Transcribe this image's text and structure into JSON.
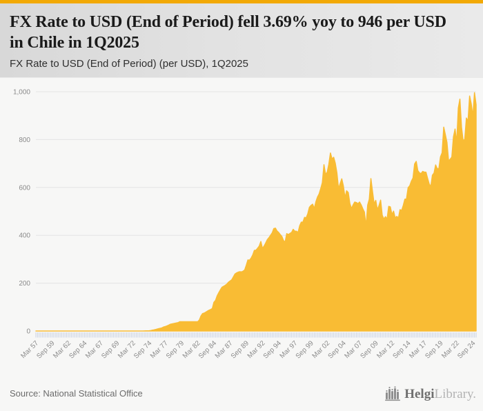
{
  "colors": {
    "accent_bar": "#f2a905",
    "area_fill": "#f9bc34",
    "gridline": "#e4e4e4",
    "axis_tick": "#c9d2e4",
    "axis_label": "#8a8a8a"
  },
  "header": {
    "title": "FX Rate to USD (End of Period) fell 3.69% yoy to 946 per USD in Chile in 1Q2025",
    "subtitle": "FX Rate to USD (End of Period) (per USD), 1Q2025"
  },
  "chart_data": {
    "type": "area",
    "title": "FX Rate to USD (End of Period) (per USD), 1Q2025",
    "country": "Chile",
    "unit": "per USD",
    "latest_value": 946,
    "latest_period": "1Q2025",
    "yoy_change_pct": -3.69,
    "grid": true,
    "legend": "none",
    "ylim": [
      0,
      1000
    ],
    "yticks": [
      0,
      200,
      400,
      600,
      800,
      1000
    ],
    "ytick_labels": [
      "0",
      "200",
      "400",
      "600",
      "800",
      "1,000"
    ],
    "x_axis": {
      "frequency": "quarterly",
      "start": "Mar 1957",
      "end": "Mar 2025",
      "tick_every": 10,
      "tick_labels": [
        "Mar 57",
        "Sep 59",
        "Mar 62",
        "Sep 64",
        "Mar 67",
        "Sep 69",
        "Mar 72",
        "Sep 74",
        "Mar 77",
        "Sep 79",
        "Mar 82",
        "Sep 84",
        "Mar 87",
        "Sep 89",
        "Mar 92",
        "Sep 94",
        "Mar 97",
        "Sep 99",
        "Mar 02",
        "Sep 04",
        "Mar 07",
        "Sep 09",
        "Mar 12",
        "Sep 14",
        "Mar 17",
        "Sep 19",
        "Mar 22",
        "Sep 24"
      ]
    },
    "values": [
      0,
      0,
      0,
      0,
      0,
      0,
      0,
      0,
      0,
      0,
      0,
      0,
      0,
      0,
      0,
      0,
      0,
      0,
      0,
      0,
      0,
      0,
      0,
      0,
      0,
      0,
      0,
      0,
      0,
      0,
      0,
      0,
      0,
      0,
      0,
      0,
      0,
      0,
      0,
      0,
      0,
      0,
      0,
      0,
      0,
      0,
      0,
      0,
      0,
      0,
      0,
      0,
      0,
      0,
      0,
      0,
      0.01,
      0.01,
      0.01,
      0.02,
      0.02,
      0.03,
      0.04,
      0.05,
      0.06,
      0.09,
      0.15,
      0.36,
      0.55,
      0.75,
      1.1,
      1.87,
      3.7,
      4.8,
      6.4,
      8.5,
      10,
      11.5,
      13.5,
      17,
      19,
      21.5,
      24.5,
      28,
      29.5,
      31,
      32.5,
      34,
      35.5,
      39,
      39,
      39,
      39,
      39,
      39,
      39,
      39,
      39,
      39,
      39,
      39,
      46,
      63,
      73,
      75,
      79,
      83,
      87,
      90,
      94,
      120,
      128,
      147,
      160,
      172,
      183,
      187,
      191,
      196,
      204,
      209,
      214,
      226,
      238,
      243,
      246,
      248,
      247,
      250,
      255,
      275,
      297,
      296,
      305,
      318,
      337,
      338,
      346,
      355,
      374,
      345,
      355,
      368,
      382,
      390,
      400,
      410,
      428,
      430,
      418,
      412,
      403,
      395,
      378,
      372,
      407,
      403,
      408,
      412,
      425,
      417,
      417,
      412,
      440,
      455,
      455,
      475,
      473,
      490,
      517,
      525,
      530,
      512,
      540,
      560,
      573,
      595,
      620,
      695,
      654,
      664,
      697,
      744,
      719,
      726,
      701,
      661,
      594,
      616,
      636,
      606,
      557,
      586,
      579,
      533,
      512,
      527,
      539,
      537,
      532,
      539,
      527,
      511,
      497,
      438,
      526,
      551,
      637,
      583,
      531,
      546,
      507,
      524,
      547,
      484,
      468,
      478,
      468,
      521,
      519,
      487,
      501,
      473,
      479,
      472,
      507,
      504,
      525,
      551,
      553,
      599,
      607,
      626,
      639,
      698,
      709,
      670,
      661,
      658,
      667,
      664,
      664,
      639,
      615,
      603,
      651,
      660,
      694,
      678,
      679,
      728,
      745,
      852,
      821,
      788,
      711,
      718,
      727,
      811,
      844,
      786,
      932,
      969,
      851,
      794,
      802,
      890,
      877,
      982,
      949,
      897,
      996,
      946
    ]
  },
  "footer": {
    "source": "Source: National Statistical Office",
    "logo": {
      "icon": "bar-chart-logo-icon",
      "text_primary": "Helgi",
      "text_secondary": "Library."
    }
  }
}
